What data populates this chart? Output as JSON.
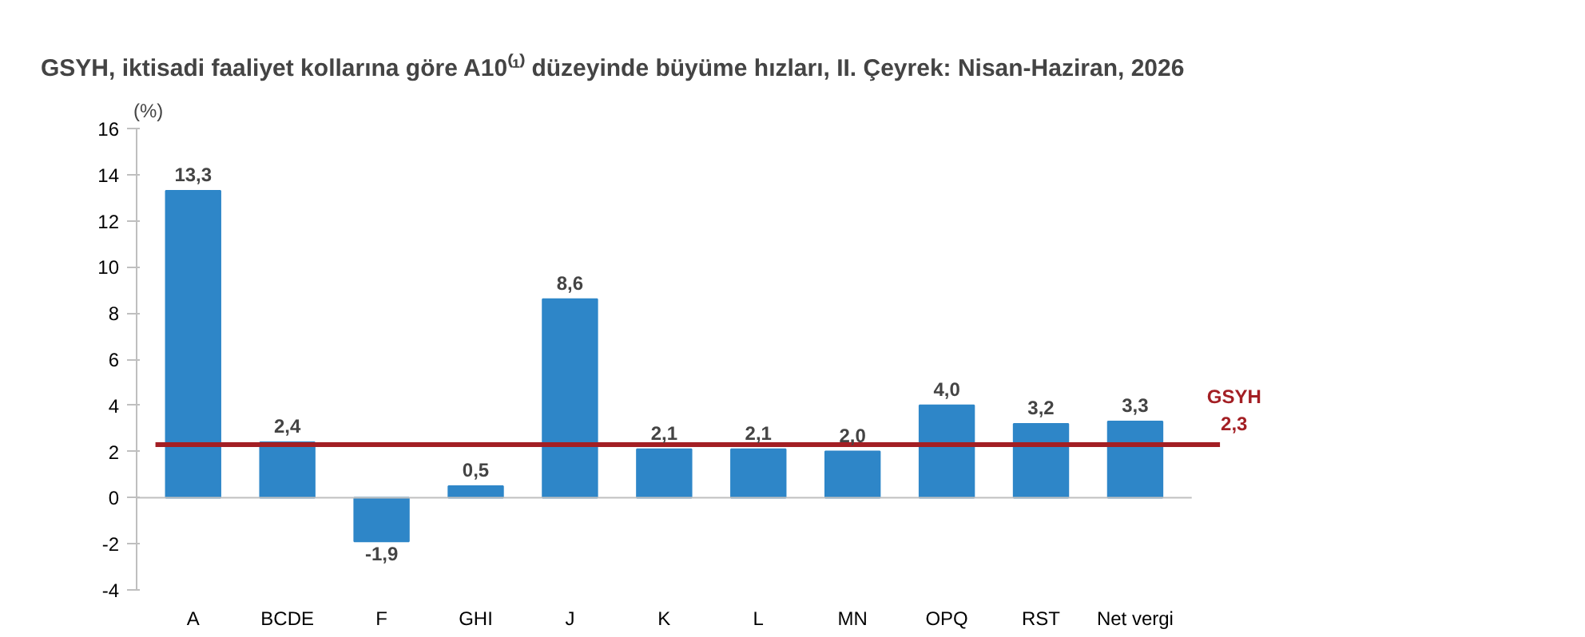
{
  "chart_data": {
    "type": "bar",
    "title": "GSYH, iktisadi faaliyet kollarına göre A10⁽¹⁾ düzeyinde büyüme hızları, II. Çeyrek: Nisan-Haziran, 2026",
    "ylabel": "(%)",
    "categories": [
      "A",
      "BCDE",
      "F",
      "GHI",
      "J",
      "K",
      "L",
      "MN",
      "OPQ",
      "RST",
      "Net vergi"
    ],
    "values": [
      13.3,
      2.4,
      -1.9,
      0.5,
      8.6,
      2.1,
      2.1,
      2.0,
      4.0,
      3.2,
      3.3
    ],
    "value_labels": [
      "13,3",
      "2,4",
      "-1,9",
      "0,5",
      "8,6",
      "2,1",
      "2,1",
      "2,0",
      "4,0",
      "3,2",
      "3,3"
    ],
    "color": "#2e86c8",
    "ylim": [
      -4,
      16
    ],
    "yticks": [
      -4,
      -2,
      0,
      2,
      4,
      6,
      8,
      10,
      12,
      14,
      16
    ],
    "ref_lines": [
      {
        "axis": "y",
        "value": 2.3,
        "label": "GSYH\n2,3",
        "color": "#a31f24"
      }
    ],
    "tick_labels": "xy"
  }
}
